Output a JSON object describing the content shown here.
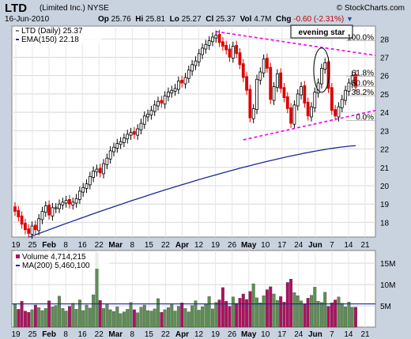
{
  "header": {
    "ticker": "LTD",
    "company": "(Limited Inc.)",
    "exchange": "NYSE",
    "date": "16-Jun-2010",
    "copyright": "© StockCharts.com",
    "open_label": "Op",
    "open": "25.76",
    "high_label": "Hi",
    "high": "25.81",
    "low_label": "Lo",
    "low": "25.27",
    "close_label": "Cl",
    "close": "25.37",
    "vol_label": "Vol",
    "vol": "4.7M",
    "chg_label": "Chg",
    "chg": "-0.60 (-2.31%)"
  },
  "chart_data": [
    {
      "type": "candlestick",
      "legend": [
        "LTD (Daily) 25.37",
        "EMA(150) 22.18"
      ],
      "y_ticks": [
        18,
        19,
        20,
        21,
        22,
        23,
        24,
        25,
        26,
        27,
        28
      ],
      "ylim": [
        17.2,
        28.7
      ],
      "x_tick_labels": [
        "19",
        "25",
        "Feb",
        "8",
        "16",
        "22",
        "Mar",
        "8",
        "15",
        "22",
        "Apr",
        "12",
        "19",
        "26",
        "May",
        "10",
        "17",
        "24",
        "Jun",
        "7",
        "14",
        "21"
      ],
      "closes": [
        18.6,
        18.3,
        17.9,
        17.6,
        17.4,
        17.8,
        17.6,
        18.2,
        18.6,
        18.9,
        18.4,
        18.8,
        18.8,
        19.0,
        19.1,
        19.2,
        19.0,
        19.1,
        19.3,
        19.7,
        19.9,
        20.1,
        20.5,
        20.8,
        20.9,
        20.7,
        21.2,
        21.5,
        21.9,
        22.1,
        22.3,
        22.4,
        22.6,
        22.8,
        22.9,
        22.8,
        23.1,
        23.4,
        23.8,
        23.9,
        24.1,
        24.4,
        24.6,
        24.5,
        24.9,
        25.1,
        25.2,
        25.3,
        25.7,
        25.6,
        25.9,
        26.3,
        26.6,
        26.8,
        27.2,
        27.5,
        27.7,
        27.9,
        28.1,
        28.2,
        27.8,
        27.6,
        27.4,
        27.0,
        27.6,
        27.2,
        26.6,
        25.9,
        25.2,
        23.7,
        24.2,
        25.8,
        26.2,
        26.9,
        26.4,
        24.7,
        25.4,
        26.1,
        25.3,
        24.8,
        24.2,
        23.4,
        24.4,
        25.0,
        25.4,
        24.5,
        23.8,
        24.3,
        25.1,
        25.6,
        26.4,
        26.7,
        25.3,
        24.1,
        23.8,
        24.3,
        24.7,
        25.2,
        25.6,
        26.0,
        25.37
      ],
      "ema_150_start": 16.9,
      "ema_150_end": 22.18,
      "volume": {
        "legend": [
          "Volume 4,714,215",
          "MA(200) 5,460,100"
        ],
        "y_ticks_labels": [
          "5M",
          "10M",
          "15M"
        ],
        "y_ticks": [
          5,
          10,
          15
        ],
        "ylim": [
          0,
          18
        ],
        "ma_200": 5.46,
        "values": [
          5.5,
          4.2,
          6.1,
          3.8,
          3.5,
          4.1,
          5.2,
          4.6,
          3.9,
          4.4,
          6.2,
          4.8,
          5.1,
          7.3,
          4.4,
          3.8,
          4.9,
          5.6,
          4.2,
          6.4,
          3.9,
          5.2,
          4.5,
          7.6,
          17.5,
          6.3,
          4.4,
          5.3,
          4.1,
          3.7,
          4.8,
          3.2,
          3.6,
          4.2,
          5.8,
          4.1,
          3.4,
          4.7,
          5.2,
          3.9,
          3.8,
          4.3,
          6.7,
          3.5,
          4.1,
          4.6,
          5.3,
          3.8,
          4.9,
          5.7,
          4.4,
          3.6,
          5.1,
          6.2,
          4.0,
          4.8,
          5.5,
          7.2,
          4.3,
          5.8,
          6.4,
          9.3,
          6.1,
          4.9,
          7.1,
          5.6,
          6.8,
          7.8,
          6.5,
          8.4,
          10.2,
          6.9,
          5.7,
          7.4,
          8.8,
          9.5,
          7.8,
          6.3,
          7.2,
          5.9,
          10.5,
          11.3,
          8.1,
          7.4,
          6.2,
          5.4,
          6.8,
          7.5,
          9.4,
          6.1,
          5.8,
          8.2,
          4.9,
          5.7,
          6.4,
          7.1,
          5.6,
          4.8,
          5.9,
          4.7,
          4.71
        ]
      }
    }
  ],
  "annotations": {
    "evening_star": "evening star",
    "fib_100": "100.0%",
    "fib_618": "61.8%",
    "fib_50": "50.0%",
    "fib_382": "38.2%",
    "fib_0": "0.0%"
  },
  "colors": {
    "up": "#000000",
    "down": "#dd0000",
    "ema": "#1a2a8f",
    "trendline": "#ee00ee",
    "vol_up": "#5e8f55",
    "vol_down": "#b01060",
    "ma_line": "#1a2a8f"
  }
}
